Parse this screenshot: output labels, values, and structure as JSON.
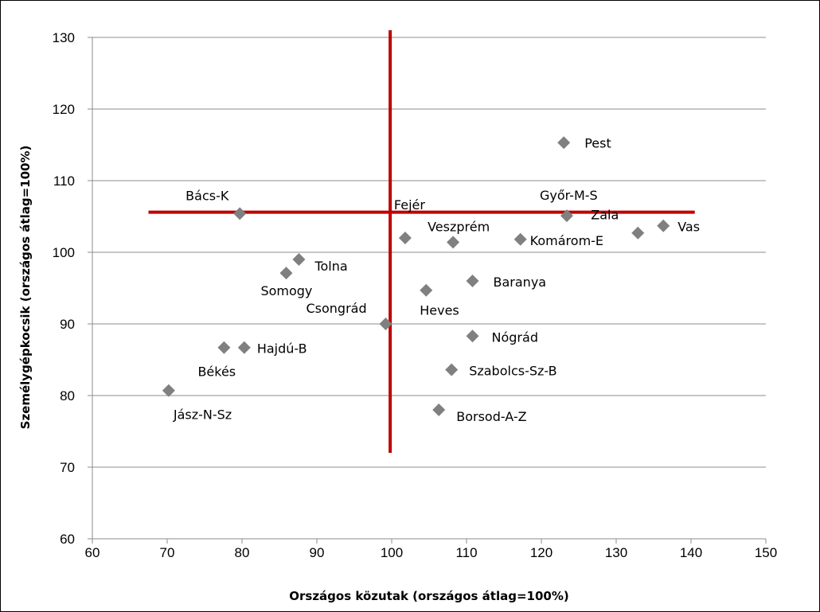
{
  "chart_data": {
    "type": "scatter",
    "xlabel": "Országos közutak (országos átlag=100%)",
    "ylabel": "Személygépkocsik (országos átlag=100%)",
    "xlim": [
      60,
      150
    ],
    "ylim": [
      60,
      130
    ],
    "xticks": [
      60,
      70,
      80,
      90,
      100,
      110,
      120,
      130,
      140,
      150
    ],
    "yticks": [
      60,
      70,
      80,
      90,
      100,
      110,
      120,
      130
    ],
    "grid": "horizontal",
    "marker_color": "#808080",
    "reference_line_color": "#c00000",
    "points": [
      {
        "label": "Pest",
        "x": 123.0,
        "y": 115.3
      },
      {
        "label": "Bács-K",
        "x": 79.7,
        "y": 105.4
      },
      {
        "label": "Győr-M-S",
        "x": 123.4,
        "y": 105.1
      },
      {
        "label": "Zala",
        "x": 132.9,
        "y": 102.7
      },
      {
        "label": "Vas",
        "x": 136.3,
        "y": 103.7
      },
      {
        "label": "Fejér",
        "x": 101.8,
        "y": 102.0
      },
      {
        "label": "Veszprém",
        "x": 108.2,
        "y": 101.4
      },
      {
        "label": "Komárom-E",
        "x": 117.2,
        "y": 101.8
      },
      {
        "label": "Tolna",
        "x": 87.6,
        "y": 99.0
      },
      {
        "label": "Somogy",
        "x": 85.9,
        "y": 97.1
      },
      {
        "label": "Baranya",
        "x": 110.8,
        "y": 96.0
      },
      {
        "label": "Heves",
        "x": 104.6,
        "y": 94.7
      },
      {
        "label": "Csongrád",
        "x": 99.2,
        "y": 90.0
      },
      {
        "label": "Nógrád",
        "x": 110.8,
        "y": 88.3
      },
      {
        "label": "Békés",
        "x": 77.6,
        "y": 86.7
      },
      {
        "label": "Hajdú-B",
        "x": 80.3,
        "y": 86.7
      },
      {
        "label": "Szabolcs-Sz-B",
        "x": 108.0,
        "y": 83.6
      },
      {
        "label": "Jász-N-Sz",
        "x": 70.2,
        "y": 80.7
      },
      {
        "label": "Borsod-A-Z",
        "x": 106.3,
        "y": 78.0
      }
    ],
    "reference_lines": [
      {
        "orientation": "horizontal",
        "y": 105.6,
        "x_from": 67.5,
        "x_to": 140.5
      },
      {
        "orientation": "vertical",
        "x": 99.8,
        "y_from": 72.0,
        "y_to": 131.0
      }
    ]
  }
}
